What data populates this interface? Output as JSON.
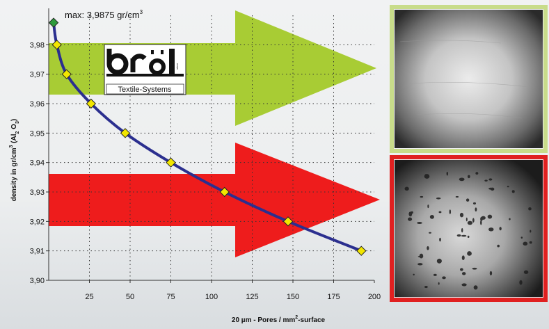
{
  "chart_data": {
    "type": "line",
    "x": [
      3,
      5,
      11,
      26,
      47,
      75,
      108,
      147,
      192
    ],
    "y": [
      3.9875,
      3.98,
      3.97,
      3.96,
      3.95,
      3.94,
      3.93,
      3.92,
      3.91
    ],
    "xlim": [
      0,
      200
    ],
    "ylim": [
      3.9,
      3.99
    ],
    "x_ticks": [
      "25",
      "50",
      "75",
      "100",
      "125",
      "150",
      "175",
      "200"
    ],
    "y_ticks": [
      "3,90",
      "3,91",
      "3,92",
      "3,93",
      "3,94",
      "3,95",
      "3,96",
      "3,97",
      "3,98"
    ],
    "xlabel_main": "20 µm - Pores / mm",
    "xlabel_sup": "2",
    "xlabel_tail": "-surface",
    "ylabel_pre": "density in gr/cm",
    "ylabel_sup": "3",
    "ylabel_mid": " (Al",
    "ylabel_sub1": "2",
    "ylabel_o": " O",
    "ylabel_sub2": "3",
    "ylabel_post": ")",
    "max_annotation": "max: 3,9875 gr/cm",
    "max_annotation_sup": "3",
    "grid": "dotted",
    "line_color": "#2b2f8f",
    "marker_color": "#f2e600",
    "max_marker_color": "#2e9a3c",
    "green_arrow_color": "#a8cc34",
    "red_arrow_color": "#ee1c1c"
  },
  "logo": {
    "text": "bröl",
    "subtitle": "Textile-Systems"
  },
  "photos": {
    "top_frame_color": "#c8dc8a",
    "bottom_frame_color": "#e02020"
  }
}
